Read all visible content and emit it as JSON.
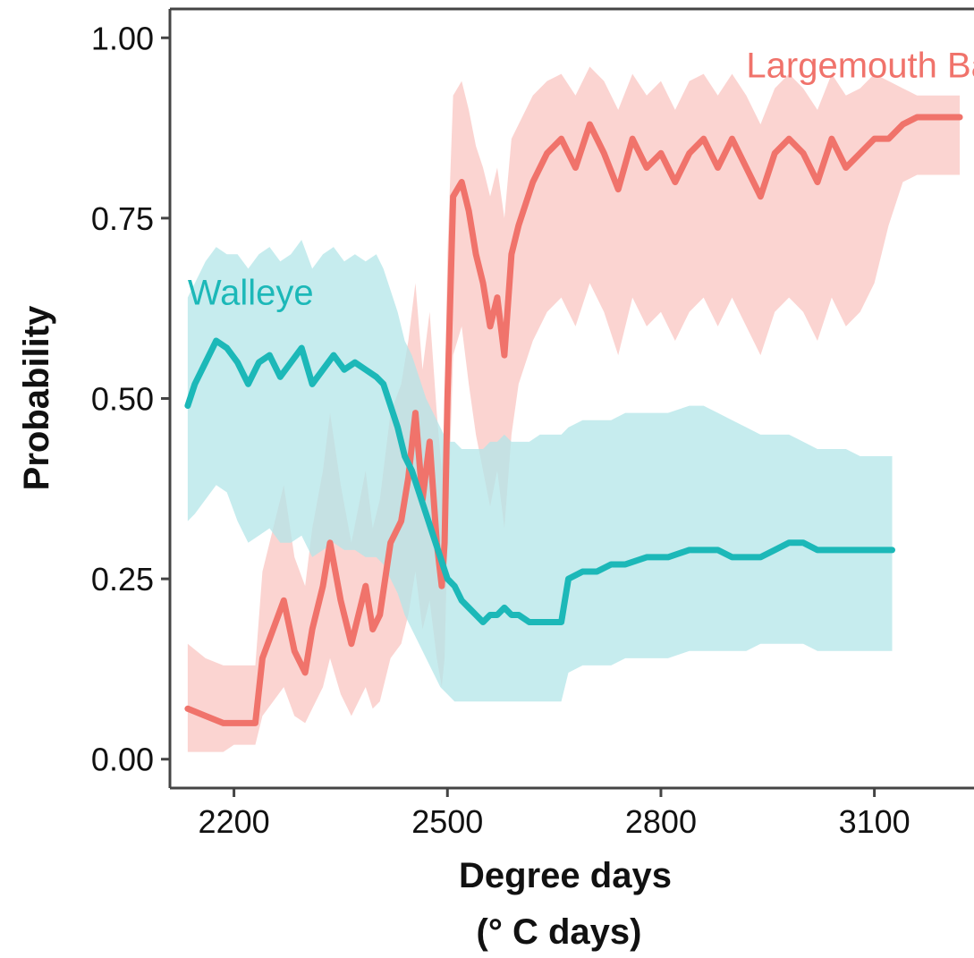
{
  "chart_data": {
    "type": "line",
    "title": "",
    "ylabel": "Probability",
    "xlabel_line1": "Degree days",
    "xlabel_line2": "(° C days)",
    "xlim": [
      2110,
      3240
    ],
    "ylim": [
      -0.04,
      1.04
    ],
    "x_ticks": [
      2200,
      2500,
      2800,
      3100
    ],
    "x_tick_labels": [
      "2200",
      "2500",
      "2800",
      "3100"
    ],
    "y_ticks": [
      0.0,
      0.25,
      0.5,
      0.75,
      1.0
    ],
    "y_tick_labels": [
      "0.00",
      "0.25",
      "0.50",
      "0.75",
      "1.00"
    ],
    "grid": false,
    "legend": "none (direct labels)",
    "series": [
      {
        "name": "Largemouth Bass",
        "color": "#f0736b",
        "band_color": "#f9c6c2",
        "label_anchor": {
          "x": 2920,
          "y": 0.945
        },
        "x": [
          2135,
          2160,
          2185,
          2200,
          2230,
          2240,
          2255,
          2270,
          2285,
          2300,
          2310,
          2325,
          2335,
          2350,
          2365,
          2375,
          2385,
          2395,
          2405,
          2420,
          2435,
          2445,
          2455,
          2465,
          2475,
          2485,
          2492,
          2496,
          2500,
          2508,
          2520,
          2530,
          2540,
          2550,
          2560,
          2570,
          2580,
          2590,
          2600,
          2620,
          2640,
          2660,
          2680,
          2700,
          2720,
          2740,
          2760,
          2780,
          2800,
          2820,
          2840,
          2860,
          2880,
          2900,
          2920,
          2940,
          2960,
          2980,
          3000,
          3020,
          3040,
          3060,
          3080,
          3100,
          3120,
          3140,
          3160,
          3180,
          3200,
          3220
        ],
        "y": [
          0.07,
          0.06,
          0.05,
          0.05,
          0.05,
          0.14,
          0.18,
          0.22,
          0.15,
          0.12,
          0.18,
          0.24,
          0.3,
          0.22,
          0.16,
          0.2,
          0.24,
          0.18,
          0.2,
          0.3,
          0.33,
          0.39,
          0.48,
          0.36,
          0.44,
          0.3,
          0.24,
          0.3,
          0.5,
          0.78,
          0.8,
          0.76,
          0.7,
          0.66,
          0.6,
          0.64,
          0.56,
          0.7,
          0.74,
          0.8,
          0.84,
          0.86,
          0.82,
          0.88,
          0.84,
          0.79,
          0.86,
          0.82,
          0.84,
          0.8,
          0.84,
          0.86,
          0.82,
          0.86,
          0.82,
          0.78,
          0.84,
          0.86,
          0.84,
          0.8,
          0.86,
          0.82,
          0.84,
          0.86,
          0.86,
          0.88,
          0.89,
          0.89,
          0.89,
          0.89
        ],
        "lower": [
          0.01,
          0.01,
          0.01,
          0.02,
          0.02,
          0.06,
          0.08,
          0.1,
          0.06,
          0.05,
          0.07,
          0.1,
          0.14,
          0.09,
          0.06,
          0.08,
          0.1,
          0.07,
          0.08,
          0.14,
          0.16,
          0.2,
          0.26,
          0.18,
          0.22,
          0.14,
          0.1,
          0.14,
          0.3,
          0.56,
          0.6,
          0.52,
          0.45,
          0.4,
          0.35,
          0.4,
          0.32,
          0.45,
          0.52,
          0.58,
          0.62,
          0.64,
          0.6,
          0.66,
          0.62,
          0.56,
          0.64,
          0.6,
          0.62,
          0.58,
          0.62,
          0.64,
          0.6,
          0.64,
          0.6,
          0.56,
          0.62,
          0.64,
          0.62,
          0.58,
          0.64,
          0.6,
          0.62,
          0.66,
          0.74,
          0.8,
          0.81,
          0.81,
          0.81,
          0.81
        ],
        "upper": [
          0.16,
          0.14,
          0.13,
          0.13,
          0.13,
          0.26,
          0.32,
          0.38,
          0.28,
          0.24,
          0.32,
          0.4,
          0.48,
          0.38,
          0.3,
          0.35,
          0.4,
          0.32,
          0.36,
          0.48,
          0.52,
          0.58,
          0.66,
          0.54,
          0.62,
          0.48,
          0.4,
          0.48,
          0.7,
          0.92,
          0.94,
          0.9,
          0.85,
          0.82,
          0.78,
          0.82,
          0.75,
          0.86,
          0.88,
          0.92,
          0.94,
          0.95,
          0.92,
          0.96,
          0.94,
          0.9,
          0.95,
          0.92,
          0.94,
          0.9,
          0.94,
          0.95,
          0.92,
          0.95,
          0.92,
          0.88,
          0.93,
          0.95,
          0.93,
          0.9,
          0.95,
          0.92,
          0.93,
          0.95,
          0.94,
          0.93,
          0.92,
          0.92,
          0.92,
          0.92
        ]
      },
      {
        "name": "Walleye",
        "color": "#1cb8b8",
        "band_color": "#b3e6e8",
        "label_anchor": {
          "x": 2135,
          "y": 0.63
        },
        "x": [
          2135,
          2145,
          2160,
          2175,
          2190,
          2205,
          2220,
          2235,
          2250,
          2265,
          2280,
          2295,
          2310,
          2325,
          2340,
          2355,
          2370,
          2385,
          2400,
          2410,
          2420,
          2430,
          2440,
          2450,
          2460,
          2470,
          2480,
          2490,
          2500,
          2510,
          2520,
          2530,
          2540,
          2550,
          2560,
          2570,
          2580,
          2590,
          2600,
          2615,
          2630,
          2645,
          2660,
          2670,
          2690,
          2710,
          2730,
          2750,
          2780,
          2810,
          2840,
          2860,
          2880,
          2900,
          2920,
          2940,
          2960,
          2980,
          3000,
          3020,
          3040,
          3060,
          3080,
          3100,
          3125
        ],
        "y": [
          0.49,
          0.52,
          0.55,
          0.58,
          0.57,
          0.55,
          0.52,
          0.55,
          0.56,
          0.53,
          0.55,
          0.57,
          0.52,
          0.54,
          0.56,
          0.54,
          0.55,
          0.54,
          0.53,
          0.52,
          0.49,
          0.46,
          0.42,
          0.4,
          0.37,
          0.34,
          0.31,
          0.28,
          0.25,
          0.24,
          0.22,
          0.21,
          0.2,
          0.19,
          0.2,
          0.2,
          0.21,
          0.2,
          0.2,
          0.19,
          0.19,
          0.19,
          0.19,
          0.25,
          0.26,
          0.26,
          0.27,
          0.27,
          0.28,
          0.28,
          0.29,
          0.29,
          0.29,
          0.28,
          0.28,
          0.28,
          0.29,
          0.3,
          0.3,
          0.29,
          0.29,
          0.29,
          0.29,
          0.29,
          0.29
        ],
        "lower": [
          0.33,
          0.34,
          0.36,
          0.38,
          0.37,
          0.33,
          0.3,
          0.31,
          0.32,
          0.3,
          0.3,
          0.31,
          0.28,
          0.29,
          0.3,
          0.29,
          0.29,
          0.28,
          0.28,
          0.27,
          0.25,
          0.23,
          0.2,
          0.18,
          0.16,
          0.14,
          0.12,
          0.1,
          0.09,
          0.08,
          0.08,
          0.08,
          0.08,
          0.08,
          0.08,
          0.08,
          0.08,
          0.08,
          0.08,
          0.08,
          0.08,
          0.08,
          0.08,
          0.12,
          0.13,
          0.13,
          0.13,
          0.14,
          0.14,
          0.14,
          0.15,
          0.15,
          0.15,
          0.15,
          0.15,
          0.16,
          0.16,
          0.16,
          0.16,
          0.15,
          0.15,
          0.15,
          0.15,
          0.15,
          0.15
        ],
        "upper": [
          0.64,
          0.66,
          0.69,
          0.71,
          0.7,
          0.7,
          0.68,
          0.7,
          0.71,
          0.69,
          0.7,
          0.72,
          0.68,
          0.7,
          0.71,
          0.69,
          0.7,
          0.69,
          0.7,
          0.68,
          0.65,
          0.62,
          0.58,
          0.56,
          0.53,
          0.5,
          0.48,
          0.46,
          0.44,
          0.44,
          0.43,
          0.43,
          0.43,
          0.43,
          0.44,
          0.44,
          0.45,
          0.44,
          0.44,
          0.44,
          0.45,
          0.45,
          0.45,
          0.46,
          0.47,
          0.47,
          0.47,
          0.48,
          0.48,
          0.48,
          0.49,
          0.49,
          0.48,
          0.47,
          0.46,
          0.45,
          0.45,
          0.45,
          0.44,
          0.43,
          0.43,
          0.43,
          0.42,
          0.42,
          0.42
        ]
      }
    ]
  }
}
